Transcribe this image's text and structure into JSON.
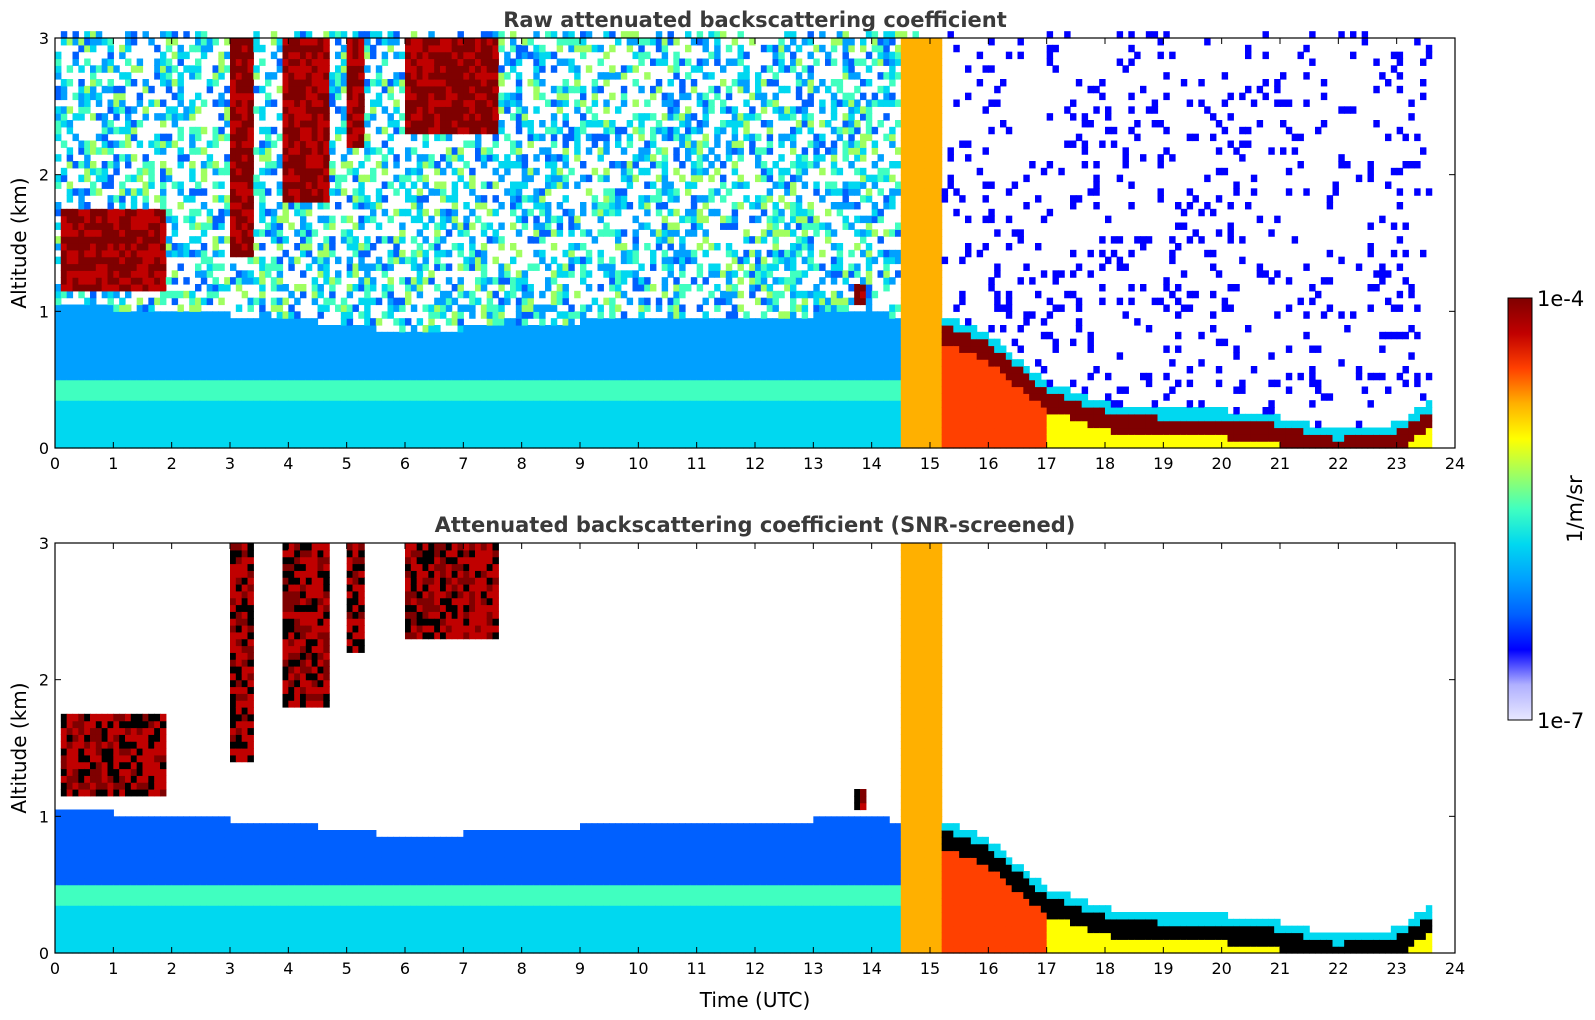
{
  "colors": {
    "colormap": [
      "#e8e8ff",
      "#b0b0ff",
      "#0000ff",
      "#0060ff",
      "#00a0ff",
      "#00d8f0",
      "#40ffc0",
      "#a0ff60",
      "#ffff00",
      "#ffb000",
      "#ff4000",
      "#c00000",
      "#7f0000"
    ],
    "screened_marker": "#000000"
  },
  "chart_data": [
    {
      "type": "heatmap",
      "title": "Raw attenuated backscattering coefficient",
      "xlabel": "",
      "ylabel": "Altitude (km)",
      "xlim": [
        0,
        24
      ],
      "ylim": [
        0,
        3
      ],
      "xticks": [
        "0",
        "1",
        "2",
        "3",
        "4",
        "5",
        "6",
        "7",
        "8",
        "9",
        "10",
        "11",
        "12",
        "13",
        "14",
        "15",
        "16",
        "17",
        "18",
        "19",
        "20",
        "21",
        "22",
        "23",
        "24"
      ],
      "yticks": [
        "0",
        "1",
        "2",
        "3"
      ],
      "data_end_hour": 23.55,
      "aerosol_layer_top_km": [
        [
          0,
          1.05
        ],
        [
          2,
          1.0
        ],
        [
          4,
          0.95
        ],
        [
          6,
          0.85
        ],
        [
          8,
          0.9
        ],
        [
          10,
          0.95
        ],
        [
          12,
          0.95
        ],
        [
          14,
          1.0
        ],
        [
          15,
          0.9
        ]
      ],
      "boundary_layer_km": [
        [
          15.2,
          0.9
        ],
        [
          16,
          0.75
        ],
        [
          17,
          0.4
        ],
        [
          18,
          0.25
        ],
        [
          19,
          0.2
        ],
        [
          20,
          0.2
        ],
        [
          21,
          0.15
        ],
        [
          22,
          0.05
        ],
        [
          23,
          0.1
        ],
        [
          23.55,
          0.25
        ]
      ],
      "clouds": [
        {
          "t0": 0.1,
          "t1": 1.9,
          "alt_km": [
            1.15,
            1.75
          ]
        },
        {
          "t0": 3.0,
          "t1": 3.4,
          "alt_km": [
            1.4,
            3.0
          ]
        },
        {
          "t0": 3.9,
          "t1": 4.7,
          "alt_km": [
            1.8,
            3.0
          ]
        },
        {
          "t0": 5.0,
          "t1": 5.3,
          "alt_km": [
            2.2,
            3.0
          ]
        },
        {
          "t0": 6.0,
          "t1": 7.6,
          "alt_km": [
            2.3,
            3.0
          ]
        },
        {
          "t0": 13.7,
          "t1": 13.9,
          "alt_km": [
            1.05,
            1.2
          ]
        },
        {
          "t0": 14.5,
          "t1": 15.2,
          "alt_km": [
            0.0,
            3.0
          ]
        }
      ]
    },
    {
      "type": "heatmap",
      "title": "Attenuated backscattering coefficient (SNR-screened)",
      "xlabel": "Time (UTC)",
      "ylabel": "Altitude (km)",
      "xlim": [
        0,
        24
      ],
      "ylim": [
        0,
        3
      ],
      "xticks": [
        "0",
        "1",
        "2",
        "3",
        "4",
        "5",
        "6",
        "7",
        "8",
        "9",
        "10",
        "11",
        "12",
        "13",
        "14",
        "15",
        "16",
        "17",
        "18",
        "19",
        "20",
        "21",
        "22",
        "23",
        "24"
      ],
      "yticks": [
        "0",
        "1",
        "2",
        "3"
      ],
      "data_end_hour": 23.55
    }
  ],
  "colorbar": {
    "max_label": "1e-4",
    "min_label": "1e-7",
    "unit_label": "1/m/sr",
    "range": [
      1e-07,
      0.0001
    ],
    "scale": "log"
  }
}
